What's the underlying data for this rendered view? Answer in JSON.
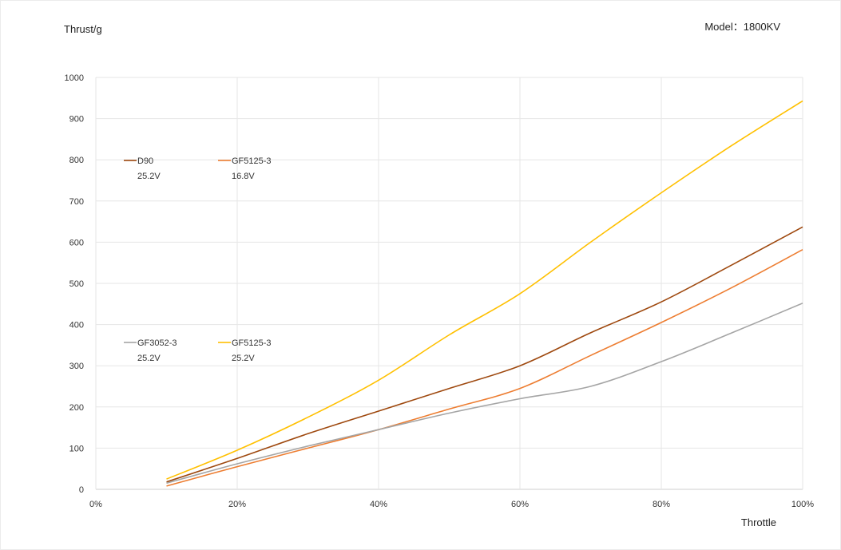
{
  "header": {
    "y_axis_label": "Thrust/g",
    "model_label": "Model：1800KV"
  },
  "chart_data": {
    "type": "line",
    "ylabel": "Thrust/g",
    "xlabel": "Throttle",
    "xlim": [
      0,
      100
    ],
    "ylim": [
      0,
      1000
    ],
    "x_ticks": [
      0,
      20,
      40,
      60,
      80,
      100
    ],
    "x_tick_labels": [
      "0%",
      "20%",
      "40%",
      "60%",
      "80%",
      "100%"
    ],
    "y_ticks": [
      0,
      100,
      200,
      300,
      400,
      500,
      600,
      700,
      800,
      900,
      1000
    ],
    "y_tick_labels": [
      "0",
      "100",
      "200",
      "300",
      "400",
      "500",
      "600",
      "700",
      "800",
      "900",
      "1000"
    ],
    "grid": true,
    "x": [
      10,
      20,
      30,
      40,
      50,
      60,
      70,
      80,
      90,
      100
    ],
    "series": [
      {
        "name": "D90",
        "sub_label": "25.2V",
        "color": "#9e480e",
        "values": [
          18,
          75,
          135,
          190,
          245,
          300,
          380,
          455,
          545,
          637
        ]
      },
      {
        "name": "GF5125-3",
        "sub_label": "16.8V",
        "color": "#ed7d31",
        "values": [
          8,
          55,
          100,
          145,
          195,
          245,
          325,
          405,
          490,
          582
        ]
      },
      {
        "name": "GF3052-3",
        "sub_label": "25.2V",
        "color": "#a5a5a5",
        "values": [
          15,
          62,
          105,
          145,
          185,
          220,
          250,
          310,
          380,
          452
        ]
      },
      {
        "name": "GF5125-3",
        "sub_label": "25.2V",
        "color": "#ffc000",
        "values": [
          25,
          95,
          175,
          265,
          375,
          475,
          600,
          720,
          835,
          943
        ]
      }
    ]
  }
}
